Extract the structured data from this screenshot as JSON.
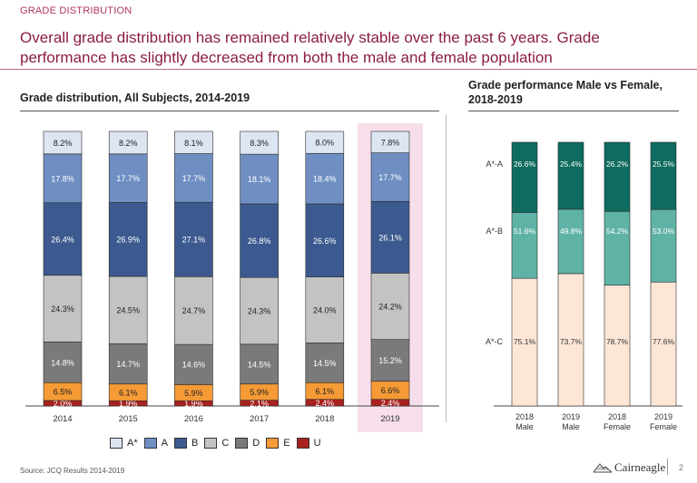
{
  "header": {
    "section_label": "GRADE DISTRIBUTION",
    "headline": "Overall grade distribution has remained relatively stable over the past 6 years. Grade performance has slightly decreased from both the male and female population"
  },
  "colors": {
    "brand": "#8b1d48",
    "highlight": "#f6dfeb",
    "A_star": "#dde5f2",
    "A": "#6f8fc3",
    "B": "#3c5a8f",
    "C": "#c3c3c3",
    "D": "#7a7a7a",
    "E": "#f59a35",
    "U": "#a8211f",
    "star_a": "#0e6b5f",
    "star_b": "#5fb3a6",
    "star_c": "#fde6d6"
  },
  "left": {
    "title": "Grade distribution, All Subjects, 2014-2019"
  },
  "right": {
    "title": "Grade performance Male vs Female, 2018-2019"
  },
  "legend": [
    {
      "label": "A*",
      "key": "A_star"
    },
    {
      "label": "A",
      "key": "A"
    },
    {
      "label": "B",
      "key": "B"
    },
    {
      "label": "C",
      "key": "C"
    },
    {
      "label": "D",
      "key": "D"
    },
    {
      "label": "E",
      "key": "E"
    },
    {
      "label": "U",
      "key": "U"
    }
  ],
  "footer": {
    "source": "Source: JCQ Results 2014-2019",
    "logo": "Cairneagle",
    "page": "2"
  },
  "chart_data": [
    {
      "type": "bar",
      "stacked": true,
      "title": "Grade distribution, All Subjects, 2014-2019",
      "categories": [
        "2014",
        "2015",
        "2016",
        "2017",
        "2018",
        "2019"
      ],
      "highlighted_category": "2019",
      "series": [
        {
          "name": "U",
          "key": "U",
          "values": [
            2.0,
            1.9,
            1.9,
            2.1,
            2.4,
            2.4
          ],
          "labels": [
            "2.0%",
            "1.9%",
            "1.9%",
            "2.1%",
            "2.4%",
            "2.4%"
          ]
        },
        {
          "name": "E",
          "key": "E",
          "values": [
            6.5,
            6.1,
            5.9,
            5.9,
            6.1,
            6.6
          ],
          "labels": [
            "6.5%",
            "6.1%",
            "5.9%",
            "5.9%",
            "6.1%",
            "6.6%"
          ]
        },
        {
          "name": "D",
          "key": "D",
          "values": [
            14.8,
            14.7,
            14.6,
            14.5,
            14.5,
            15.2
          ],
          "labels": [
            "14.8%",
            "14.7%",
            "14.6%",
            "14.5%",
            "14.5%",
            "15.2%"
          ]
        },
        {
          "name": "C",
          "key": "C",
          "values": [
            24.3,
            24.5,
            24.7,
            24.3,
            24.0,
            24.2
          ],
          "labels": [
            "24.3%",
            "24.5%",
            "24.7%",
            "24.3%",
            "24.0%",
            "24.2%"
          ]
        },
        {
          "name": "B",
          "key": "B",
          "values": [
            26.4,
            26.9,
            27.1,
            26.8,
            26.6,
            26.1
          ],
          "labels": [
            "26.4%",
            "26.9%",
            "27.1%",
            "26.8%",
            "26.6%",
            "26.1%"
          ]
        },
        {
          "name": "A",
          "key": "A",
          "values": [
            17.8,
            17.7,
            17.7,
            18.1,
            18.4,
            17.7
          ],
          "labels": [
            "17.8%",
            "17.7%",
            "17.7%",
            "18.1%",
            "18.4%",
            "17.7%"
          ]
        },
        {
          "name": "A*",
          "key": "A_star",
          "values": [
            8.2,
            8.2,
            8.1,
            8.3,
            8.0,
            7.8
          ],
          "labels": [
            "8.2%",
            "8.2%",
            "8.1%",
            "8.3%",
            "8.0%",
            "7.8%"
          ]
        }
      ]
    },
    {
      "type": "bar",
      "stacked": true,
      "title": "Grade performance Male vs Female, 2018-2019",
      "categories": [
        [
          "2018",
          "Male"
        ],
        [
          "2019",
          "Male"
        ],
        [
          "2018",
          "Female"
        ],
        [
          "2019",
          "Female"
        ]
      ],
      "row_labels": [
        "A*-A",
        "A*-B",
        "A*-C"
      ],
      "series": [
        {
          "name": "A*-C",
          "key": "star_c",
          "values": [
            75.1,
            73.7,
            78.7,
            77.6
          ],
          "labels": [
            "75.1%",
            "73.7%",
            "78.7%",
            "77.6%"
          ]
        },
        {
          "name": "A*-B",
          "key": "star_b",
          "values": [
            51.6,
            49.8,
            54.2,
            53.0
          ],
          "labels": [
            "51.6%",
            "49.8%",
            "54.2%",
            "53.0%"
          ]
        },
        {
          "name": "A*-A",
          "key": "star_a",
          "values": [
            26.6,
            25.4,
            26.2,
            25.5
          ],
          "labels": [
            "26.6%",
            "25.4%",
            "26.2%",
            "25.5%"
          ]
        }
      ]
    }
  ]
}
